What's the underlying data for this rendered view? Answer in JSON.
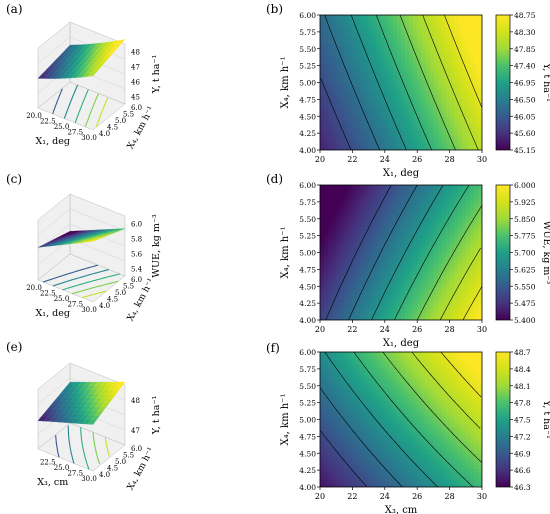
{
  "chart_data": [
    {
      "id": "a",
      "panel_label": "(a)",
      "type": "surface3d",
      "x_ticks": [
        "20.0",
        "22.5",
        "25.0",
        "27.5",
        "30.0"
      ],
      "y_ticks": [
        "4.0",
        "4.5",
        "5.0",
        "5.5",
        "6.0"
      ],
      "z_ticks": [
        "45",
        "46",
        "47",
        "48"
      ],
      "xlabel": "X₁, deg",
      "ylabel": "X₄, km h⁻¹",
      "zlabel": "Y, t ha⁻¹",
      "xlim": [
        20,
        30
      ],
      "ylim": [
        4,
        6
      ],
      "zlim": [
        45,
        48.75
      ]
    },
    {
      "id": "b",
      "panel_label": "(b)",
      "type": "contour",
      "x_ticks": [
        "20",
        "22",
        "24",
        "26",
        "28",
        "30"
      ],
      "y_ticks": [
        "4.00",
        "4.25",
        "4.50",
        "4.75",
        "5.00",
        "5.25",
        "5.50",
        "5.75",
        "6.00"
      ],
      "xlabel": "X₁, deg",
      "ylabel": "X₄, km h⁻¹",
      "xlim": [
        20,
        30
      ],
      "ylim": [
        4,
        6
      ],
      "colorbar": {
        "label": "Y, t ha⁻¹",
        "ticks": [
          "45.15",
          "45.60",
          "46.05",
          "46.50",
          "46.95",
          "47.40",
          "47.85",
          "48.30",
          "48.75"
        ],
        "range": [
          45.15,
          48.75
        ]
      }
    },
    {
      "id": "c",
      "panel_label": "(c)",
      "type": "surface3d",
      "x_ticks": [
        "20.0",
        "22.5",
        "25.0",
        "27.5",
        "30.0"
      ],
      "y_ticks": [
        "4.0",
        "4.5",
        "5.0",
        "5.5",
        "6.0"
      ],
      "z_ticks": [
        "5.4",
        "5.6",
        "5.8",
        "6.0"
      ],
      "xlabel": "X₁, deg",
      "ylabel": "X₄, km h⁻¹",
      "zlabel": "WUE, kg m⁻³",
      "xlim": [
        20,
        30
      ],
      "ylim": [
        4,
        6
      ],
      "zlim": [
        5.4,
        6.0
      ]
    },
    {
      "id": "d",
      "panel_label": "(d)",
      "type": "contour",
      "x_ticks": [
        "20",
        "22",
        "24",
        "26",
        "28",
        "30"
      ],
      "y_ticks": [
        "4.00",
        "4.25",
        "4.50",
        "4.75",
        "5.00",
        "5.25",
        "5.50",
        "5.75",
        "6.00"
      ],
      "xlabel": "X₁, deg",
      "ylabel": "X₄, km h⁻¹",
      "xlim": [
        20,
        30
      ],
      "ylim": [
        4,
        6
      ],
      "colorbar": {
        "label": "WUE, kg m⁻³",
        "ticks": [
          "5.400",
          "5.475",
          "5.550",
          "5.625",
          "5.700",
          "5.775",
          "5.850",
          "5.925",
          "6.000"
        ],
        "range": [
          5.4,
          6.0
        ]
      }
    },
    {
      "id": "e",
      "panel_label": "(e)",
      "type": "surface3d",
      "x_ticks": [
        "22.5",
        "25.0",
        "27.5",
        "30.0"
      ],
      "y_ticks": [
        "4.0",
        "4.5",
        "5.0",
        "5.5",
        "6.0"
      ],
      "z_ticks": [
        "47",
        "48"
      ],
      "xlabel": "X₃, cm",
      "ylabel": "X₄, km h⁻¹",
      "zlabel": "Y, t ha⁻¹",
      "xlim": [
        20,
        30
      ],
      "ylim": [
        4,
        6
      ],
      "zlim": [
        46.3,
        48.7
      ]
    },
    {
      "id": "f",
      "panel_label": "(f)",
      "type": "contour",
      "x_ticks": [
        "20",
        "22",
        "24",
        "26",
        "28",
        "30"
      ],
      "y_ticks": [
        "4.00",
        "4.25",
        "4.50",
        "4.75",
        "5.00",
        "5.25",
        "5.50",
        "5.75",
        "6.00"
      ],
      "xlabel": "X₃, cm",
      "ylabel": "X₄, km h⁻¹",
      "xlim": [
        20,
        30
      ],
      "ylim": [
        4,
        6
      ],
      "colorbar": {
        "label": "Y, t ha⁻¹",
        "ticks": [
          "46.3",
          "46.6",
          "46.9",
          "47.2",
          "47.5",
          "47.8",
          "48.1",
          "48.4",
          "48.7"
        ],
        "range": [
          46.3,
          48.7
        ]
      }
    }
  ]
}
